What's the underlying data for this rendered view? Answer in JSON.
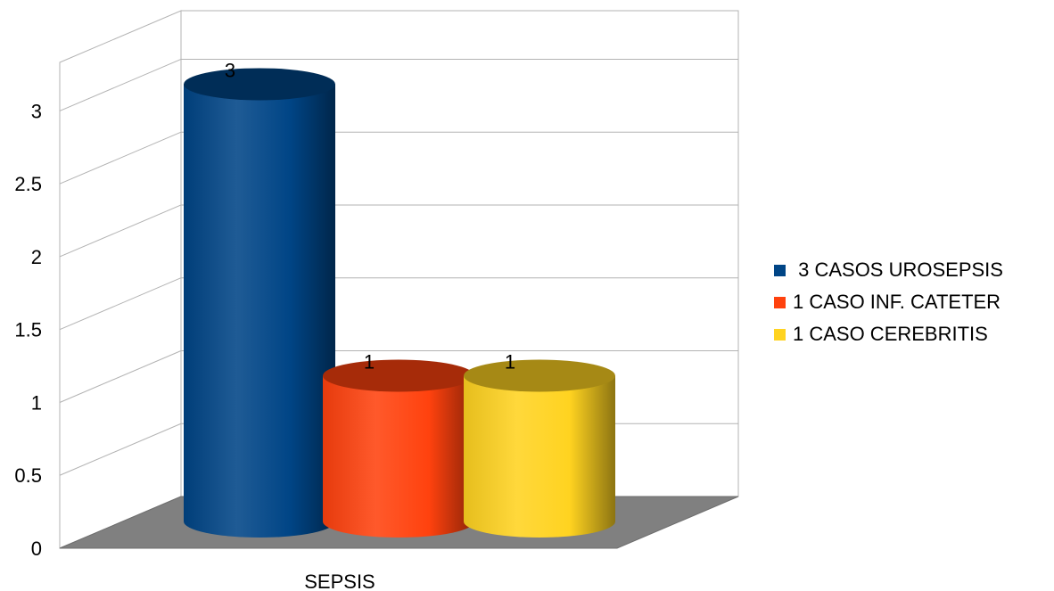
{
  "chart_data": {
    "type": "bar",
    "three_d": true,
    "categories": [
      "SEPSIS"
    ],
    "series": [
      {
        "name": " 3 CASOS UROSEPSIS",
        "values": [
          3
        ],
        "color": "#004586"
      },
      {
        "name": "1 CASO INF. CATETER",
        "values": [
          1
        ],
        "color": "#ff420e"
      },
      {
        "name": "1 CASO CEREBRITIS",
        "values": [
          1
        ],
        "color": "#ffd320"
      }
    ],
    "y_ticks": [
      "0",
      "0.5",
      "1",
      "1.5",
      "2",
      "2.5",
      "3"
    ],
    "ylim": [
      0,
      3.333
    ],
    "grid": true,
    "legend_position": "right",
    "floor_color": "#808080",
    "title": "",
    "xlabel": "",
    "ylabel": ""
  }
}
